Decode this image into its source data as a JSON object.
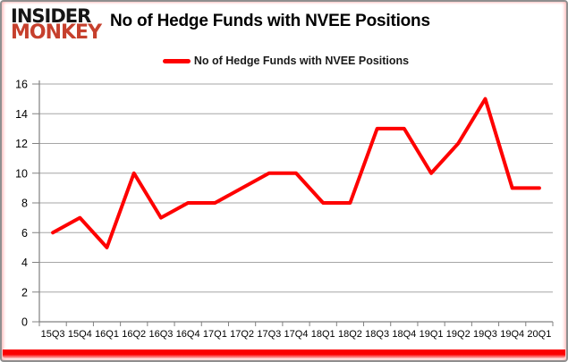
{
  "window": {
    "logo": {
      "line1": "INSIDER",
      "line2": "MONKEY",
      "line1_color": "#151515",
      "line2_color": "#c6402d"
    },
    "title": "No of Hedge Funds with NVEE Positions"
  },
  "legend": {
    "label": "No of Hedge Funds with NVEE Positions",
    "swatch_color": "#fe0000"
  },
  "chart_data": {
    "type": "line",
    "title": "No of Hedge Funds with NVEE Positions",
    "categories": [
      "15Q3",
      "15Q4",
      "16Q1",
      "16Q2",
      "16Q3",
      "16Q4",
      "17Q1",
      "17Q2",
      "17Q3",
      "17Q4",
      "18Q1",
      "18Q2",
      "18Q3",
      "18Q4",
      "19Q1",
      "19Q2",
      "19Q3",
      "19Q4",
      "20Q1"
    ],
    "series": [
      {
        "name": "No of Hedge Funds with NVEE Positions",
        "color": "#fe0000",
        "values": [
          6,
          7,
          5,
          10,
          7,
          8,
          8,
          9,
          10,
          10,
          8,
          8,
          13,
          13,
          10,
          12,
          15,
          9,
          9
        ]
      }
    ],
    "ylim": [
      0,
      16
    ],
    "ytick_step": 2,
    "grid": "horizontal",
    "legend_position": "top"
  },
  "colors": {
    "gridline": "#a6a6a6",
    "axis": "#808080",
    "tick_label": "#000000",
    "accent_red": "#fe0000",
    "bottom_bar": "#fb0000",
    "border": "#8f8f8f"
  }
}
